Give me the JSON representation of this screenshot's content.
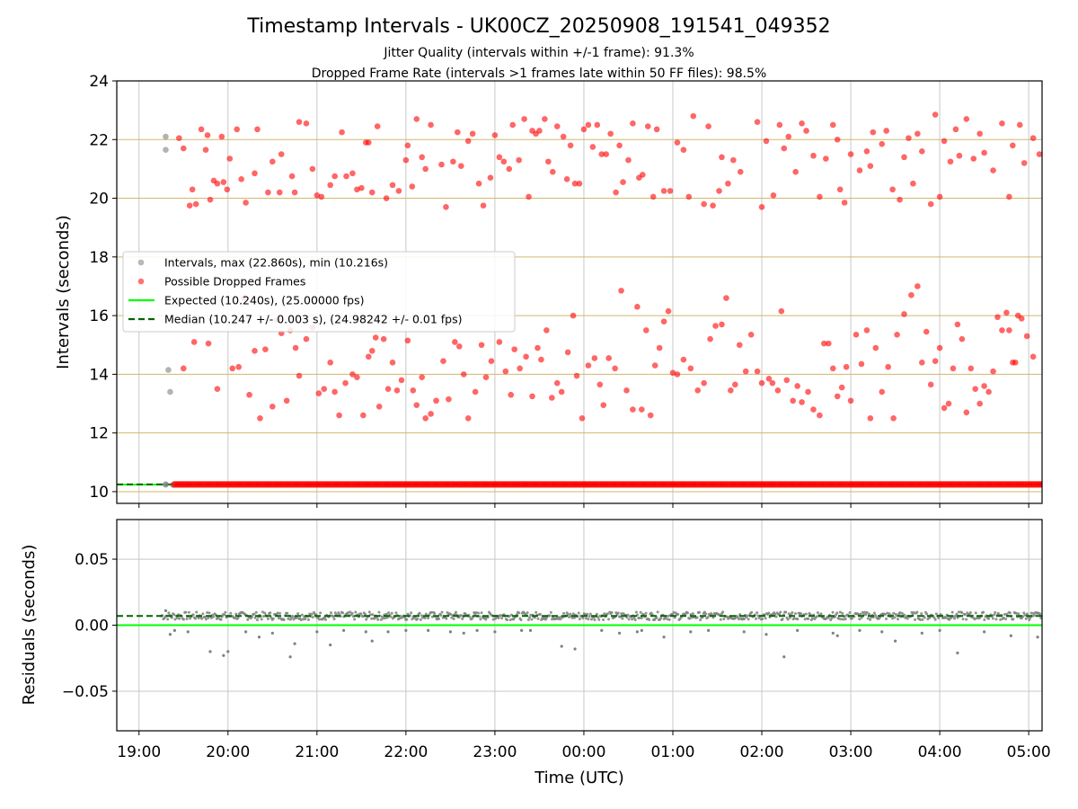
{
  "figure": {
    "title": "Timestamp Intervals - UK00CZ_20250908_191541_049352",
    "subtitle_1": "Jitter Quality (intervals within +/-1 frame): 91.3%",
    "subtitle_2": "Dropped Frame Rate (intervals >1 frames late within 50 FF files): 98.5%"
  },
  "colors": {
    "intervals": "#808080",
    "dropped": "#ff0000",
    "expected": "#00ff00",
    "median": "#006400",
    "grid_h": "#d2b86a",
    "grid_v": "#c8c8c8"
  },
  "chart_data": [
    {
      "type": "scatter",
      "ylabel": "Intervals (seconds)",
      "xlabel": "",
      "x_unit": "hours since 19:00 UTC",
      "xlim": [
        -0.25,
        10.15
      ],
      "ylim": [
        9.6,
        24
      ],
      "yticks": [
        10,
        12,
        14,
        16,
        18,
        20,
        22,
        24
      ],
      "xticks": [
        0,
        1,
        2,
        3,
        4,
        5,
        6,
        7,
        8,
        9,
        10
      ],
      "legend_position": "center-left",
      "series": [
        {
          "name": "Intervals, max (22.860s), min (10.216s)",
          "style": "gray-dots",
          "x": [
            0.3,
            0.3,
            0.33,
            0.35,
            0.3,
            0.3,
            0.38
          ],
          "y": [
            22.1,
            21.65,
            14.15,
            13.4,
            10.25,
            10.24,
            10.23
          ]
        },
        {
          "name": "Possible Dropped Frames",
          "style": "red-dots"
        },
        {
          "name": "Expected (10.240s), (25.00000 fps)",
          "style": "green-line",
          "value": 10.24
        },
        {
          "name": "Median (10.247 +/- 0.003 s), (24.98242 +/- 0.01 fps)",
          "style": "dark-green-dashed",
          "value": 10.247
        }
      ],
      "dropped_band": {
        "y": 10.247,
        "x_start": 0.4,
        "x_end": 10.15
      },
      "dropped_upper": {
        "x": [
          0.45,
          0.5,
          0.57,
          0.6,
          0.64,
          0.7,
          0.75,
          0.77,
          0.8,
          0.84,
          0.88,
          0.93,
          0.95,
          0.99,
          1.02,
          1.1,
          1.15,
          1.2,
          1.3,
          1.33,
          1.45,
          1.5,
          1.58,
          1.6,
          1.72,
          1.75,
          1.8,
          1.88,
          1.95,
          2.0,
          2.05,
          2.15,
          2.2,
          2.28,
          2.33,
          2.4,
          2.45,
          2.5,
          2.55,
          2.58,
          2.62,
          2.68,
          2.78,
          2.85,
          2.92,
          3.0,
          3.02,
          3.07,
          3.12,
          3.18,
          3.22,
          3.28,
          3.4,
          3.45,
          3.53,
          3.58,
          3.62,
          3.7,
          3.75,
          3.82,
          3.87,
          3.95,
          4.0,
          4.05,
          4.1,
          4.16,
          4.2,
          4.27,
          4.33,
          4.38,
          4.42,
          4.46,
          4.5,
          4.56,
          4.6,
          4.65,
          4.7,
          4.77,
          4.81,
          4.85,
          4.9,
          4.95,
          5.0,
          5.05,
          5.1,
          5.15,
          5.2,
          5.25,
          5.3,
          5.36,
          5.4,
          5.44,
          5.5,
          5.55,
          5.62,
          5.66,
          5.72,
          5.78,
          5.82,
          5.9,
          5.97,
          6.05,
          6.12,
          6.18,
          6.23,
          6.35,
          6.4,
          6.45,
          6.52,
          6.55,
          6.62,
          6.68,
          6.76,
          6.95,
          7.0,
          7.05,
          7.13,
          7.2,
          7.25,
          7.3,
          7.38,
          7.45,
          7.5,
          7.58,
          7.65,
          7.72,
          7.8,
          7.85,
          7.88,
          7.93,
          8.0,
          8.1,
          8.18,
          8.22,
          8.25,
          8.35,
          8.4,
          8.47,
          8.55,
          8.6,
          8.65,
          8.7,
          8.75,
          8.8,
          8.9,
          8.95,
          9.0,
          9.05,
          9.12,
          9.18,
          9.22,
          9.3,
          9.38,
          9.45,
          9.5,
          9.6,
          9.7,
          9.78,
          9.82,
          9.9,
          9.95,
          10.05,
          10.12
        ],
        "y": [
          22.05,
          21.7,
          19.75,
          20.3,
          19.8,
          22.35,
          21.65,
          22.15,
          19.95,
          20.6,
          20.5,
          22.1,
          20.55,
          20.3,
          21.35,
          22.35,
          20.65,
          19.85,
          20.85,
          22.35,
          20.2,
          21.25,
          20.2,
          21.5,
          20.75,
          20.2,
          22.6,
          22.55,
          21.0,
          20.1,
          20.05,
          20.45,
          20.75,
          22.25,
          20.75,
          20.85,
          20.3,
          20.35,
          21.9,
          21.9,
          20.2,
          22.45,
          20.0,
          20.45,
          20.25,
          21.3,
          21.8,
          20.4,
          22.7,
          21.4,
          21.0,
          22.5,
          21.15,
          19.7,
          21.25,
          22.25,
          21.1,
          21.95,
          22.2,
          20.5,
          19.75,
          20.7,
          22.15,
          21.4,
          21.25,
          21.0,
          22.5,
          21.3,
          22.7,
          20.05,
          22.3,
          22.2,
          22.3,
          22.7,
          21.25,
          20.9,
          22.45,
          22.1,
          20.65,
          21.8,
          20.5,
          20.5,
          22.35,
          22.5,
          21.75,
          22.5,
          21.5,
          21.5,
          22.2,
          20.2,
          21.8,
          20.55,
          21.3,
          22.55,
          20.7,
          20.8,
          22.45,
          20.05,
          22.35,
          20.25,
          20.25,
          21.9,
          21.65,
          20.05,
          22.8,
          19.8,
          22.45,
          19.75,
          20.25,
          21.4,
          20.5,
          21.3,
          20.9,
          22.6,
          19.7,
          21.95,
          20.1,
          22.5,
          21.7,
          22.1,
          20.9,
          22.55,
          22.3,
          21.45,
          20.05,
          21.35,
          22.5,
          22.0,
          20.3,
          19.85,
          21.5,
          20.95,
          21.6,
          21.1,
          22.25,
          21.85,
          22.3,
          20.3,
          19.95,
          21.4,
          22.05,
          20.5,
          22.2,
          21.6,
          19.8,
          22.85,
          20.05,
          21.95,
          21.25,
          22.35,
          21.45,
          22.7,
          21.35,
          22.2,
          21.55,
          20.95,
          22.55,
          20.05,
          21.8,
          22.5,
          21.2,
          22.05,
          21.5
        ]
      },
      "dropped_lower": {
        "x": [
          0.5,
          0.62,
          0.78,
          0.88,
          1.05,
          1.12,
          1.18,
          1.24,
          1.3,
          1.36,
          1.42,
          1.5,
          1.55,
          1.6,
          1.66,
          1.7,
          1.76,
          1.8,
          1.88,
          1.95,
          2.02,
          2.08,
          2.15,
          2.2,
          2.25,
          2.32,
          2.4,
          2.45,
          2.52,
          2.58,
          2.62,
          2.66,
          2.7,
          2.75,
          2.8,
          2.85,
          2.9,
          2.95,
          3.02,
          3.08,
          3.12,
          3.18,
          3.22,
          3.28,
          3.34,
          3.42,
          3.48,
          3.55,
          3.6,
          3.65,
          3.7,
          3.78,
          3.85,
          3.9,
          3.96,
          4.05,
          4.12,
          4.18,
          4.22,
          4.28,
          4.35,
          4.42,
          4.48,
          4.52,
          4.58,
          4.64,
          4.7,
          4.75,
          4.82,
          4.88,
          4.92,
          4.98,
          5.05,
          5.12,
          5.18,
          5.22,
          5.28,
          5.35,
          5.42,
          5.48,
          5.55,
          5.6,
          5.65,
          5.7,
          5.75,
          5.8,
          5.85,
          5.9,
          5.95,
          6.0,
          6.05,
          6.12,
          6.2,
          6.28,
          6.35,
          6.42,
          6.48,
          6.55,
          6.6,
          6.65,
          6.7,
          6.75,
          6.82,
          6.88,
          6.95,
          7.0,
          7.08,
          7.12,
          7.18,
          7.22,
          7.28,
          7.35,
          7.4,
          7.45,
          7.52,
          7.58,
          7.65,
          7.7,
          7.75,
          7.8,
          7.85,
          7.9,
          7.95,
          8.0,
          8.06,
          8.12,
          8.18,
          8.22,
          8.28,
          8.35,
          8.42,
          8.48,
          8.52,
          8.6,
          8.68,
          8.75,
          8.8,
          8.85,
          8.9,
          8.95,
          9.0,
          9.05,
          9.1,
          9.15,
          9.2,
          9.25,
          9.3,
          9.35,
          9.4,
          9.45,
          9.5,
          9.55,
          9.6,
          9.65,
          9.7,
          9.75,
          9.78,
          9.82,
          9.85,
          9.88,
          9.92,
          9.98,
          10.05
        ],
        "y": [
          14.2,
          15.1,
          15.05,
          13.5,
          14.2,
          14.25,
          16.6,
          13.3,
          14.8,
          12.5,
          14.85,
          12.9,
          15.85,
          15.4,
          13.1,
          15.5,
          14.9,
          13.95,
          15.2,
          15.6,
          13.35,
          13.5,
          14.4,
          13.4,
          12.6,
          13.7,
          14.0,
          13.9,
          12.6,
          14.6,
          14.8,
          15.25,
          12.9,
          15.2,
          13.5,
          14.4,
          13.45,
          13.8,
          15.15,
          13.45,
          12.95,
          13.9,
          12.5,
          12.65,
          13.1,
          14.45,
          13.15,
          15.1,
          14.95,
          14.0,
          12.5,
          13.4,
          15.0,
          13.9,
          14.45,
          15.1,
          14.1,
          13.3,
          14.85,
          14.2,
          14.6,
          13.25,
          14.9,
          14.5,
          15.5,
          13.2,
          13.7,
          13.4,
          14.75,
          16.0,
          13.95,
          12.5,
          14.3,
          14.55,
          13.65,
          12.95,
          14.55,
          14.2,
          16.85,
          13.45,
          12.8,
          16.3,
          12.8,
          15.5,
          12.6,
          14.3,
          14.9,
          15.8,
          16.15,
          14.05,
          14.0,
          14.5,
          14.2,
          13.45,
          13.7,
          15.2,
          15.65,
          15.7,
          16.6,
          13.45,
          13.65,
          15.0,
          14.1,
          15.35,
          14.1,
          13.7,
          13.85,
          13.7,
          13.45,
          16.15,
          13.8,
          13.1,
          13.6,
          13.05,
          13.4,
          12.8,
          12.6,
          15.05,
          15.05,
          14.2,
          13.25,
          13.55,
          14.25,
          13.1,
          15.35,
          14.35,
          15.5,
          12.5,
          14.9,
          13.4,
          14.25,
          12.5,
          15.35,
          16.05,
          16.7,
          17.0,
          14.4,
          15.45,
          13.65,
          14.45,
          14.9,
          12.85,
          13.0,
          14.2,
          15.7,
          15.2,
          12.7,
          14.2,
          13.5,
          13.0,
          13.6,
          13.4,
          14.1,
          15.95,
          15.5,
          16.1,
          15.5,
          14.4,
          14.4,
          16.0,
          15.9,
          15.3,
          14.6
        ]
      }
    },
    {
      "type": "scatter",
      "ylabel": "Residuals (seconds)",
      "xlabel": "Time (UTC)",
      "xlim": [
        -0.25,
        10.15
      ],
      "ylim": [
        -0.08,
        0.08
      ],
      "yticks": [
        0.05,
        0.0,
        -0.05
      ],
      "ytick_labels": [
        "0.05",
        "0.00",
        "−0.05"
      ],
      "xtick_labels": [
        "19:00",
        "20:00",
        "21:00",
        "22:00",
        "23:00",
        "00:00",
        "01:00",
        "02:00",
        "03:00",
        "04:00",
        "05:00"
      ],
      "expected": 0.0,
      "median": 0.007,
      "band": {
        "y_center": 0.007,
        "y_spread": 0.003,
        "x_start": 0.25,
        "x_end": 10.15
      },
      "outliers": {
        "x": [
          0.3,
          0.35,
          0.4,
          0.55,
          0.8,
          0.95,
          1.0,
          1.2,
          1.35,
          1.5,
          1.7,
          1.75,
          2.0,
          2.15,
          2.3,
          2.55,
          2.62,
          2.8,
          3.0,
          3.25,
          3.5,
          3.65,
          3.8,
          4.0,
          4.3,
          4.4,
          4.75,
          4.9,
          5.2,
          5.4,
          5.6,
          5.65,
          5.9,
          6.2,
          6.4,
          6.8,
          7.05,
          7.25,
          7.4,
          7.8,
          7.85,
          8.1,
          8.35,
          8.5,
          8.8,
          9.0,
          9.2,
          9.5,
          9.8,
          10.1
        ],
        "y": [
          0.011,
          -0.007,
          -0.004,
          -0.005,
          -0.02,
          -0.023,
          -0.02,
          -0.005,
          -0.009,
          -0.006,
          -0.024,
          -0.014,
          -0.005,
          -0.015,
          -0.004,
          -0.005,
          -0.012,
          -0.005,
          -0.004,
          -0.004,
          -0.005,
          -0.006,
          -0.004,
          -0.005,
          -0.004,
          -0.004,
          -0.016,
          -0.018,
          -0.004,
          -0.006,
          -0.005,
          -0.004,
          -0.009,
          -0.005,
          -0.004,
          -0.005,
          -0.007,
          -0.024,
          -0.004,
          -0.006,
          -0.008,
          -0.004,
          -0.005,
          -0.012,
          -0.006,
          -0.004,
          -0.021,
          -0.005,
          -0.008,
          -0.009
        ]
      }
    }
  ]
}
